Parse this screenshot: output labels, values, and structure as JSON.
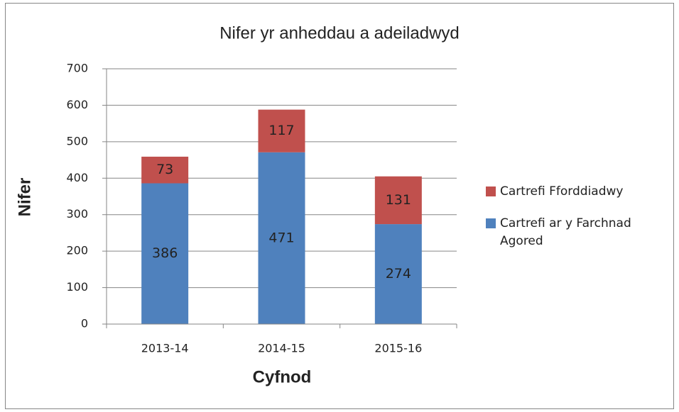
{
  "chart_data": {
    "type": "stacked_bar",
    "title": "Nifer yr anheddau a adeiladwyd",
    "x_label": "Cyfnod",
    "y_label": "Nifer",
    "categories": [
      "2013-14",
      "2014-15",
      "2015-16"
    ],
    "series": [
      {
        "name": "Cartrefi ar y Farchnad Agored",
        "color": "#4f81bd",
        "values": [
          386,
          471,
          274
        ]
      },
      {
        "name": "Cartrefi Fforddiadwy",
        "color": "#c0504d",
        "values": [
          73,
          117,
          131
        ]
      }
    ],
    "ylim": [
      0,
      700
    ],
    "yticks": [
      0,
      100,
      200,
      300,
      400,
      500,
      600,
      700
    ],
    "grid": true,
    "legend": "right"
  }
}
